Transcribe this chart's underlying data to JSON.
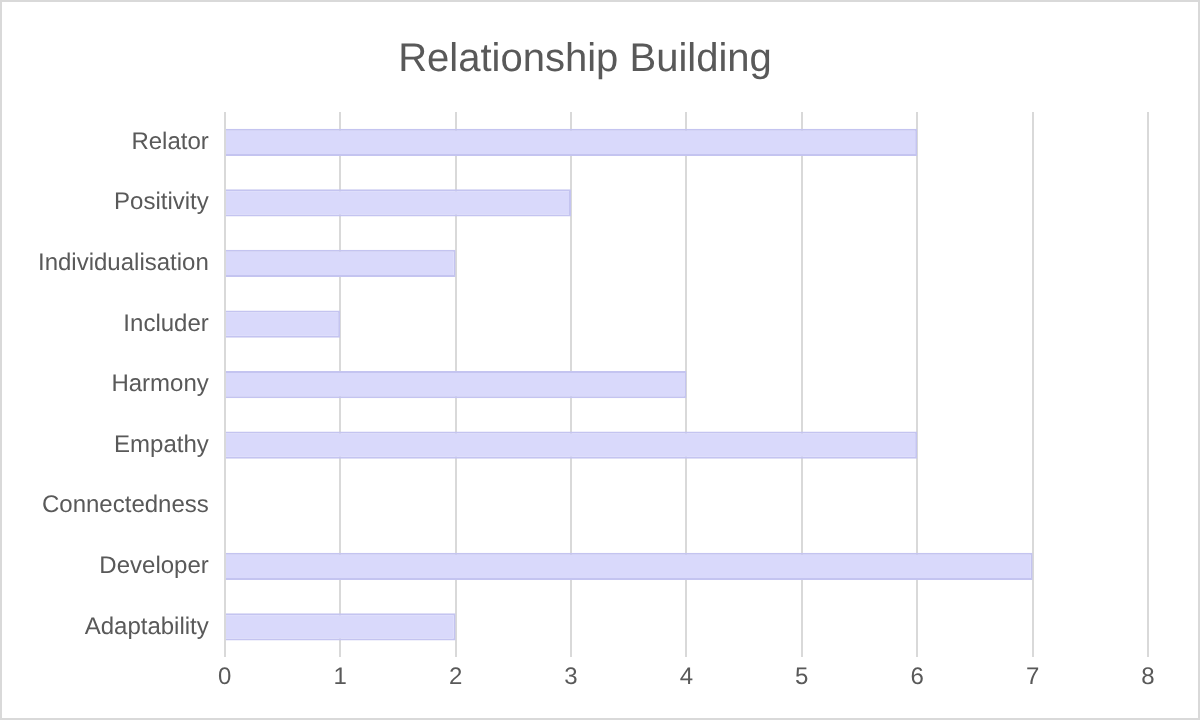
{
  "chart_data": {
    "type": "bar",
    "orientation": "horizontal",
    "title": "Relationship Building",
    "categories": [
      "Relator",
      "Positivity",
      "Individualisation",
      "Includer",
      "Harmony",
      "Empathy",
      "Connectedness",
      "Developer",
      "Adaptability"
    ],
    "values": [
      6,
      3,
      2,
      1,
      4,
      6,
      0,
      7,
      2
    ],
    "color": "#d9d9fb",
    "xlim": [
      0,
      8
    ],
    "xticks": [
      0,
      1,
      2,
      3,
      4,
      5,
      6,
      7,
      8
    ],
    "grid": "x",
    "legend": false
  }
}
